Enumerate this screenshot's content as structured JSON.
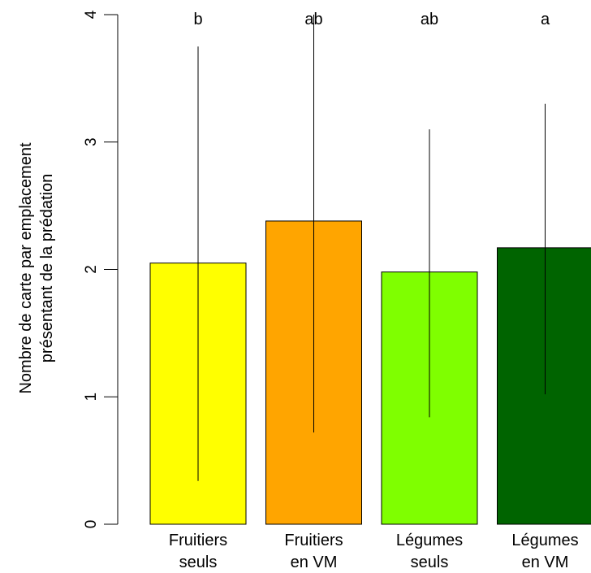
{
  "chart_data": {
    "type": "bar",
    "categories": [
      [
        "Fruitiers",
        "seuls"
      ],
      [
        "Fruitiers",
        "en VM"
      ],
      [
        "Légumes",
        "seuls"
      ],
      [
        "Légumes",
        "en VM"
      ]
    ],
    "values": [
      2.05,
      2.38,
      1.98,
      2.17
    ],
    "error_low": [
      0.34,
      0.72,
      0.84,
      1.02
    ],
    "error_high": [
      3.75,
      4.0,
      3.1,
      3.3
    ],
    "significance_letters": [
      "b",
      "ab",
      "ab",
      "a"
    ],
    "colors": [
      "#ffff00",
      "#ffa500",
      "#7fff00",
      "#006400"
    ],
    "ylabel_lines": [
      "Nombre de carte par emplacement",
      "présentant de la prédation"
    ],
    "yticks": [
      "0",
      "1",
      "2",
      "3",
      "4"
    ],
    "ylim": [
      0,
      4
    ],
    "grid": false
  }
}
